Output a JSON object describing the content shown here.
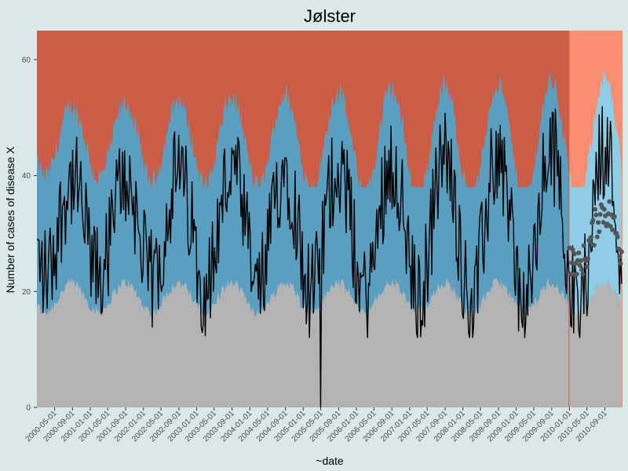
{
  "chart_data": {
    "type": "area",
    "title": "Jølster",
    "xlabel": "~date",
    "ylabel": "Number of cases of disease X",
    "ylim": [
      0,
      65
    ],
    "yticks": [
      0,
      20,
      40,
      60
    ],
    "xlim": [
      "2000-01-01",
      "2010-12-31"
    ],
    "x_tick_labels": [
      "2000-05-01",
      "2000-09-01",
      "2001-01-01",
      "2001-05-01",
      "2001-09-01",
      "2002-01-01",
      "2002-05-01",
      "2002-09-01",
      "2003-01-01",
      "2003-05-01",
      "2003-09-01",
      "2004-01-01",
      "2004-05-01",
      "2004-09-01",
      "2005-01-01",
      "2005-05-01",
      "2005-09-01",
      "2006-01-01",
      "2006-05-01",
      "2006-09-01",
      "2007-01-01",
      "2007-05-01",
      "2007-09-01",
      "2008-01-01",
      "2008-05-01",
      "2008-09-01",
      "2009-01-01",
      "2009-05-01",
      "2009-09-01",
      "2010-01-01",
      "2010-05-01",
      "2010-09-01"
    ],
    "forecast_start": "2010-01-01",
    "colors": {
      "high_historical": "#cc5c45",
      "high_forecast": "#fb8c70",
      "expected_historical": "#5b9fc0",
      "expected_forecast": "#8ecde6",
      "low_historical": "#b3b3b3",
      "low_forecast": "#b3b3b3",
      "observed_line": "#000000",
      "forecast_points": "#555555"
    },
    "series": [
      {
        "role": "seasonal_low_threshold",
        "description": "grey band lower-to-threshold",
        "min": 15,
        "max": 24
      },
      {
        "role": "seasonal_high_threshold",
        "description": "upper edge of blue band",
        "min": 38,
        "max": 64
      },
      {
        "role": "observed",
        "description": "black weekly line",
        "min": 0,
        "max": 58,
        "notable_zero_at": "2005-05-01"
      },
      {
        "role": "forecast_points",
        "description": "grey dots in 2010",
        "min": 23,
        "max": 38
      }
    ]
  }
}
